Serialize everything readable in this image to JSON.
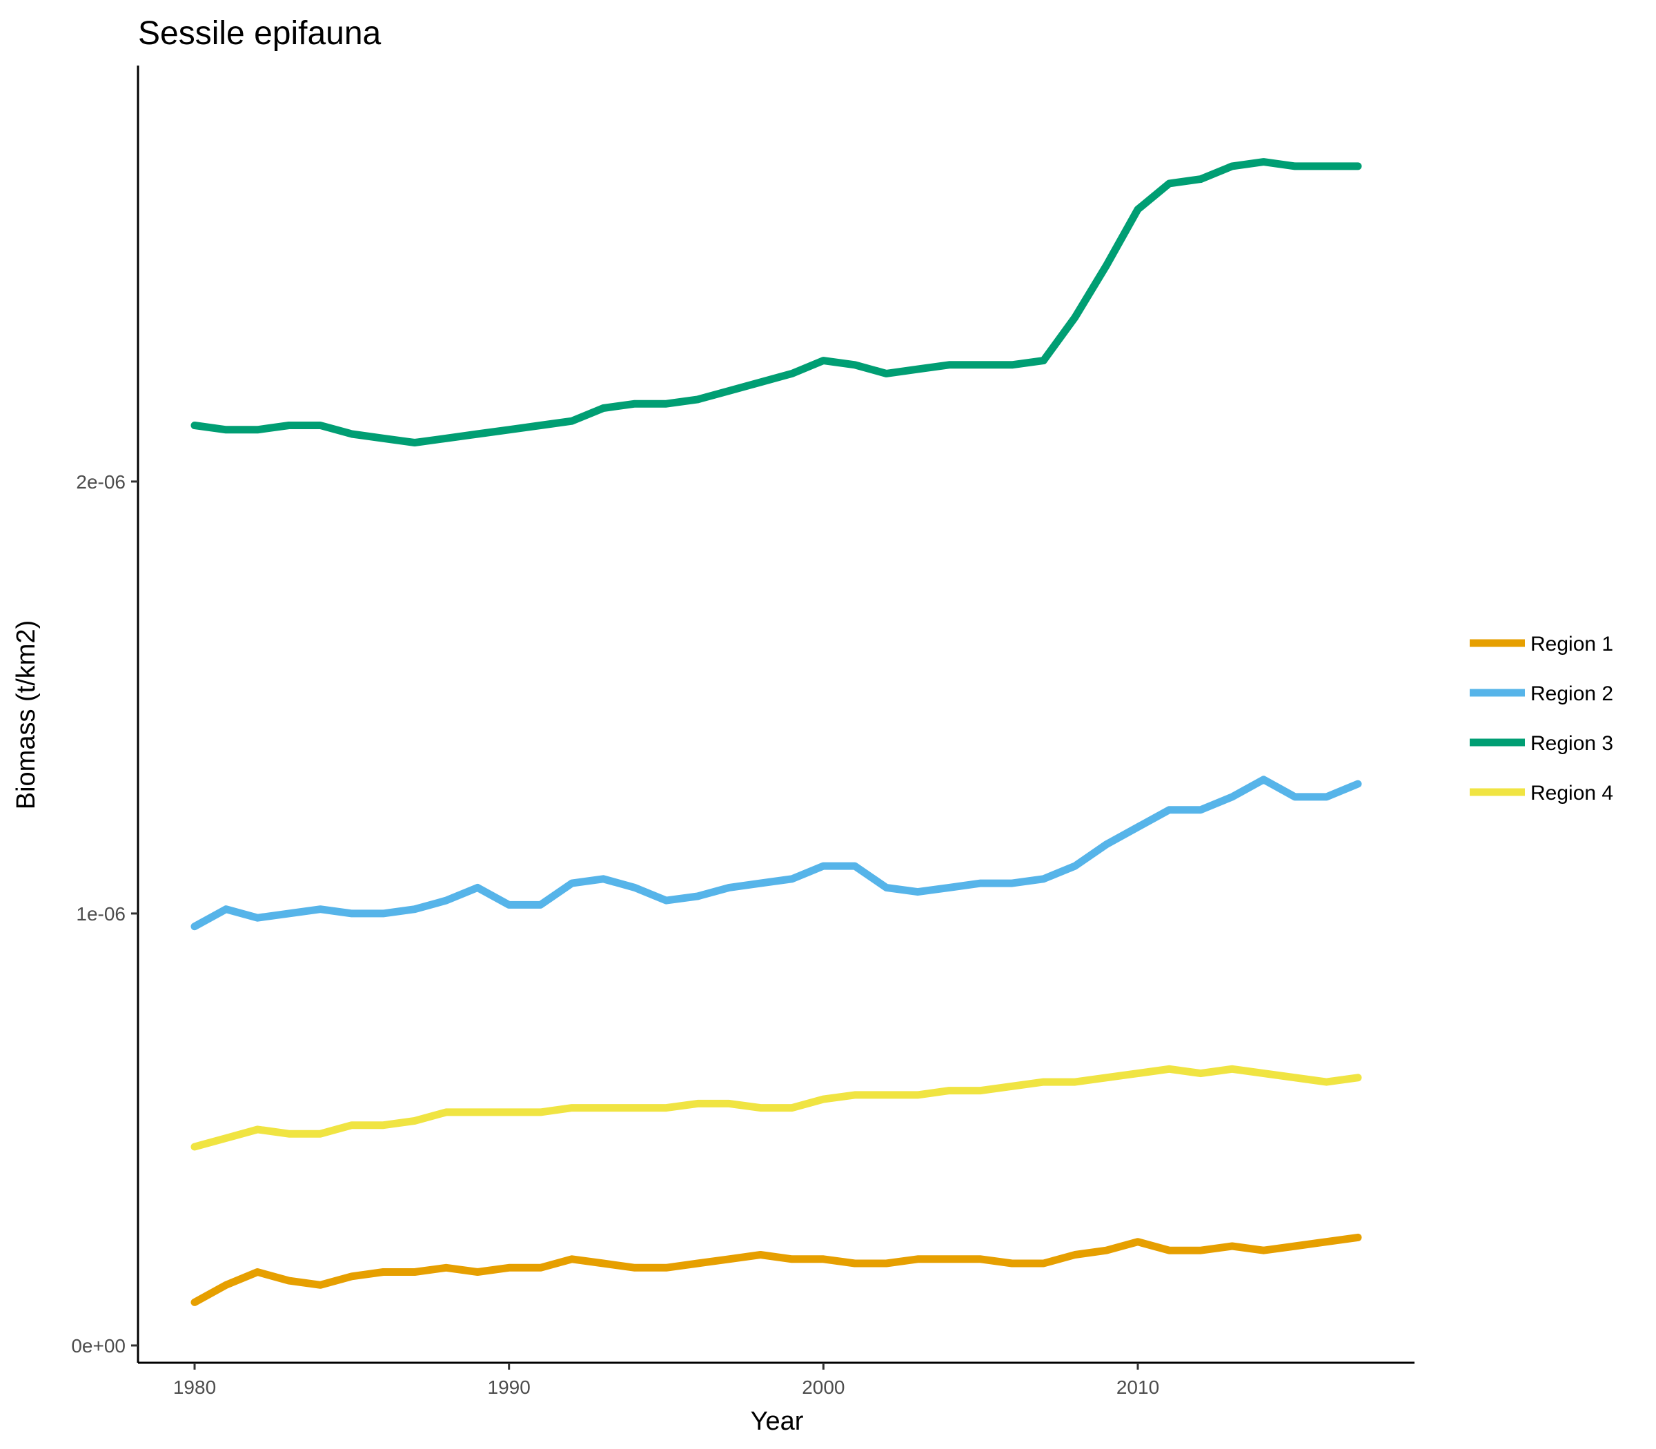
{
  "chart_data": {
    "type": "line",
    "title": "Sessile epifauna",
    "xlabel": "Year",
    "ylabel": "Biomass (t/km2)",
    "xlim": [
      1978.2,
      2018.8
    ],
    "ylim": [
      -4e-08,
      2.963e-06
    ],
    "x_ticks": [
      {
        "value": 1980,
        "label": "1980"
      },
      {
        "value": 1990,
        "label": "1990"
      },
      {
        "value": 2000,
        "label": "2000"
      },
      {
        "value": 2010,
        "label": "2010"
      }
    ],
    "y_ticks": [
      {
        "value": 0,
        "label": "0e+00"
      },
      {
        "value": 1e-06,
        "label": "1e-06"
      },
      {
        "value": 2e-06,
        "label": "2e-06"
      }
    ],
    "grid": false,
    "legend_position": "right",
    "series": [
      {
        "name": "Region 1",
        "color": "#E69F00",
        "x": [
          1980,
          1981,
          1982,
          1983,
          1984,
          1985,
          1986,
          1987,
          1988,
          1989,
          1990,
          1991,
          1992,
          1993,
          1994,
          1995,
          1996,
          1997,
          1998,
          1999,
          2000,
          2001,
          2002,
          2003,
          2004,
          2005,
          2006,
          2007,
          2008,
          2009,
          2010,
          2011,
          2012,
          2013,
          2014,
          2015,
          2016,
          2017
        ],
        "y": [
          1e-07,
          1.4e-07,
          1.7e-07,
          1.5e-07,
          1.4e-07,
          1.6e-07,
          1.7e-07,
          1.7e-07,
          1.8e-07,
          1.7e-07,
          1.8e-07,
          1.8e-07,
          2e-07,
          1.9e-07,
          1.8e-07,
          1.8e-07,
          1.9e-07,
          2e-07,
          2.1e-07,
          2e-07,
          2e-07,
          1.9e-07,
          1.9e-07,
          2e-07,
          2e-07,
          2e-07,
          1.9e-07,
          1.9e-07,
          2.1e-07,
          2.2e-07,
          2.4e-07,
          2.2e-07,
          2.2e-07,
          2.3e-07,
          2.2e-07,
          2.3e-07,
          2.4e-07,
          2.5e-07
        ]
      },
      {
        "name": "Region 2",
        "color": "#56B4E9",
        "x": [
          1980,
          1981,
          1982,
          1983,
          1984,
          1985,
          1986,
          1987,
          1988,
          1989,
          1990,
          1991,
          1992,
          1993,
          1994,
          1995,
          1996,
          1997,
          1998,
          1999,
          2000,
          2001,
          2002,
          2003,
          2004,
          2005,
          2006,
          2007,
          2008,
          2009,
          2010,
          2011,
          2012,
          2013,
          2014,
          2015,
          2016,
          2017
        ],
        "y": [
          9.7e-07,
          1.01e-06,
          9.9e-07,
          1e-06,
          1.01e-06,
          1e-06,
          1e-06,
          1.01e-06,
          1.03e-06,
          1.06e-06,
          1.02e-06,
          1.02e-06,
          1.07e-06,
          1.08e-06,
          1.06e-06,
          1.03e-06,
          1.04e-06,
          1.06e-06,
          1.07e-06,
          1.08e-06,
          1.11e-06,
          1.11e-06,
          1.06e-06,
          1.05e-06,
          1.06e-06,
          1.07e-06,
          1.07e-06,
          1.08e-06,
          1.11e-06,
          1.16e-06,
          1.2e-06,
          1.24e-06,
          1.24e-06,
          1.27e-06,
          1.31e-06,
          1.27e-06,
          1.27e-06,
          1.3e-06
        ]
      },
      {
        "name": "Region 3",
        "color": "#009E73",
        "x": [
          1980,
          1981,
          1982,
          1983,
          1984,
          1985,
          1986,
          1987,
          1988,
          1989,
          1990,
          1991,
          1992,
          1993,
          1994,
          1995,
          1996,
          1997,
          1998,
          1999,
          2000,
          2001,
          2002,
          2003,
          2004,
          2005,
          2006,
          2007,
          2008,
          2009,
          2010,
          2011,
          2012,
          2013,
          2014,
          2015,
          2016,
          2017
        ],
        "y": [
          2.13e-06,
          2.12e-06,
          2.12e-06,
          2.13e-06,
          2.13e-06,
          2.11e-06,
          2.1e-06,
          2.09e-06,
          2.1e-06,
          2.11e-06,
          2.12e-06,
          2.13e-06,
          2.14e-06,
          2.17e-06,
          2.18e-06,
          2.18e-06,
          2.19e-06,
          2.21e-06,
          2.23e-06,
          2.25e-06,
          2.28e-06,
          2.27e-06,
          2.25e-06,
          2.26e-06,
          2.27e-06,
          2.27e-06,
          2.27e-06,
          2.28e-06,
          2.38e-06,
          2.5e-06,
          2.63e-06,
          2.69e-06,
          2.7e-06,
          2.73e-06,
          2.74e-06,
          2.73e-06,
          2.73e-06,
          2.73e-06
        ]
      },
      {
        "name": "Region 4",
        "color": "#F0E442",
        "x": [
          1980,
          1981,
          1982,
          1983,
          1984,
          1985,
          1986,
          1987,
          1988,
          1989,
          1990,
          1991,
          1992,
          1993,
          1994,
          1995,
          1996,
          1997,
          1998,
          1999,
          2000,
          2001,
          2002,
          2003,
          2004,
          2005,
          2006,
          2007,
          2008,
          2009,
          2010,
          2011,
          2012,
          2013,
          2014,
          2015,
          2016,
          2017
        ],
        "y": [
          4.6e-07,
          4.8e-07,
          5e-07,
          4.9e-07,
          4.9e-07,
          5.1e-07,
          5.1e-07,
          5.2e-07,
          5.4e-07,
          5.4e-07,
          5.4e-07,
          5.4e-07,
          5.5e-07,
          5.5e-07,
          5.5e-07,
          5.5e-07,
          5.6e-07,
          5.6e-07,
          5.5e-07,
          5.5e-07,
          5.7e-07,
          5.8e-07,
          5.8e-07,
          5.8e-07,
          5.9e-07,
          5.9e-07,
          6e-07,
          6.1e-07,
          6.1e-07,
          6.2e-07,
          6.3e-07,
          6.4e-07,
          6.3e-07,
          6.4e-07,
          6.3e-07,
          6.2e-07,
          6.1e-07,
          6.2e-07
        ]
      }
    ]
  }
}
